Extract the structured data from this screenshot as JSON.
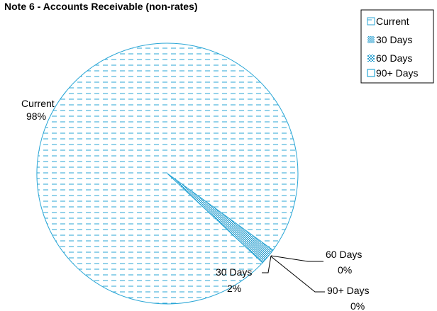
{
  "chart_data": {
    "type": "pie",
    "title": "Note 6 - Accounts Receivable (non-rates)",
    "categories": [
      "Current",
      "30 Days",
      "60 Days",
      "90+ Days"
    ],
    "values": [
      98,
      2,
      0,
      0
    ],
    "data_labels": [
      "98%",
      "2%",
      "0%",
      "0%"
    ],
    "legend": {
      "position": "top-right",
      "entries": [
        "Current",
        "30 Days",
        "60 Days",
        "90+ Days"
      ]
    },
    "colors": {
      "outline": "#29a6d6",
      "pattern": "#29a6d6",
      "dense_pattern": "#2a9fcf",
      "leader": "#000000"
    }
  }
}
